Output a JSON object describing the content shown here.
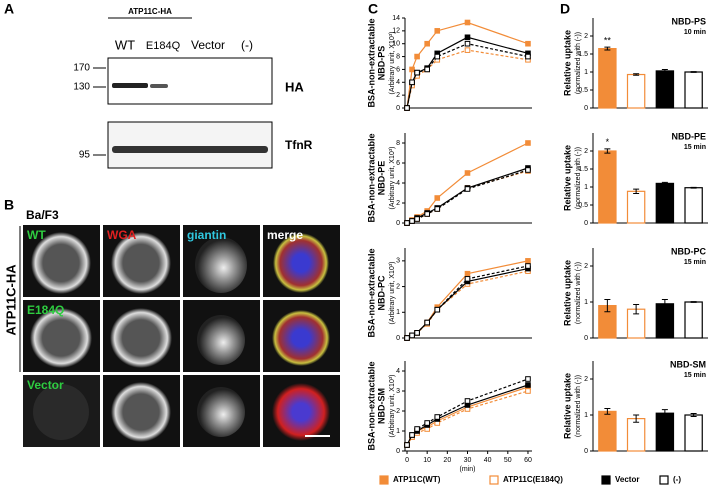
{
  "panels": {
    "letters": [
      "A",
      "B",
      "C",
      "D"
    ],
    "blot": {
      "group": "ATP11C-HA",
      "lanes": [
        "WT",
        "E184Q",
        "Vector",
        "(-)"
      ],
      "markers": [
        "170",
        "130",
        "95"
      ],
      "bands": [
        "HA",
        "TfnR"
      ]
    },
    "microscopy": {
      "cell_line": "Ba/F3",
      "side_label": "ATP11C-HA",
      "columns": [
        "WT",
        "WGA",
        "giantin",
        "merge"
      ],
      "rows": [
        "E184Q",
        "Vector"
      ]
    }
  },
  "chart_data": [
    {
      "type": "line",
      "y_label": [
        "BSA-non-extractable",
        "NBD-PS"
      ],
      "y_unit": "(Arbitrary unit, X10³)",
      "x": [
        0,
        2.5,
        5,
        10,
        15,
        30,
        60
      ],
      "xlim": [
        -1,
        62
      ],
      "ylim": [
        0,
        14
      ],
      "yticks": [
        0,
        2,
        4,
        6,
        8,
        10,
        12,
        14
      ],
      "series": [
        {
          "name": "ATP11C(WT)",
          "color": "#f28c38",
          "dashed": false,
          "filled": true,
          "values": [
            0,
            6,
            8,
            10,
            12,
            13.3,
            10
          ]
        },
        {
          "name": "ATP11C(E184Q)",
          "color": "#f28c38",
          "dashed": true,
          "filled": false,
          "values": [
            0,
            3.5,
            5,
            6,
            7.5,
            9,
            7.5
          ]
        },
        {
          "name": "Vector",
          "color": "#000000",
          "dashed": false,
          "filled": true,
          "values": [
            0,
            4,
            5.5,
            6.2,
            8.5,
            11,
            8.5
          ]
        },
        {
          "name": "(-)",
          "color": "#000000",
          "dashed": true,
          "filled": false,
          "values": [
            0,
            4,
            5.5,
            6,
            8,
            10,
            8
          ]
        }
      ]
    },
    {
      "type": "line",
      "y_label": [
        "BSA-non-extractable",
        "NBD-PE"
      ],
      "y_unit": "(Arbitrary unit, X10³)",
      "x": [
        0,
        2.5,
        5,
        10,
        15,
        30,
        60
      ],
      "xlim": [
        -1,
        62
      ],
      "ylim": [
        0,
        9
      ],
      "yticks": [
        0,
        2,
        4,
        6,
        8
      ],
      "series": [
        {
          "color": "#f28c38",
          "dashed": false,
          "filled": true,
          "values": [
            0,
            0.3,
            0.6,
            1.2,
            2.5,
            5,
            8
          ]
        },
        {
          "color": "#f28c38",
          "dashed": true,
          "filled": false,
          "values": [
            0,
            0.2,
            0.4,
            0.9,
            1.4,
            3.5,
            5.2
          ]
        },
        {
          "color": "#000000",
          "dashed": false,
          "filled": true,
          "values": [
            0,
            0.2,
            0.5,
            1,
            1.5,
            3.5,
            5.5
          ]
        },
        {
          "color": "#000000",
          "dashed": true,
          "filled": false,
          "values": [
            0,
            0.2,
            0.4,
            0.9,
            1.4,
            3.4,
            5.3
          ]
        }
      ]
    },
    {
      "type": "line",
      "y_label": [
        "BSA-non-extractable",
        "NBD-PC"
      ],
      "y_unit": "(Arbitrary unit, X10³)",
      "x": [
        0,
        2.5,
        5,
        10,
        15,
        30,
        60
      ],
      "xlim": [
        -1,
        62
      ],
      "ylim": [
        0,
        3.5
      ],
      "yticks": [
        0,
        1,
        2,
        3
      ],
      "series": [
        {
          "color": "#f28c38",
          "dashed": false,
          "filled": true,
          "values": [
            0,
            0.1,
            0.2,
            0.6,
            1.2,
            2.5,
            3
          ]
        },
        {
          "color": "#f28c38",
          "dashed": true,
          "filled": false,
          "values": [
            0,
            0.1,
            0.2,
            0.55,
            1.1,
            2.1,
            2.6
          ]
        },
        {
          "color": "#000000",
          "dashed": false,
          "filled": true,
          "values": [
            0,
            0.1,
            0.2,
            0.6,
            1.1,
            2.2,
            2.7
          ]
        },
        {
          "color": "#000000",
          "dashed": true,
          "filled": false,
          "values": [
            0,
            0.1,
            0.2,
            0.6,
            1.1,
            2.3,
            2.8
          ]
        }
      ]
    },
    {
      "type": "line",
      "y_label": [
        "BSA-non-extractable",
        "NBD-SM"
      ],
      "y_unit": "(Arbitrary unit, X10³)",
      "x_label": "(min)",
      "x": [
        0,
        2.5,
        5,
        10,
        15,
        30,
        60
      ],
      "xlim": [
        -1,
        62
      ],
      "xticks": [
        0,
        10,
        20,
        30,
        40,
        50,
        60
      ],
      "ylim": [
        0,
        4.5
      ],
      "yticks": [
        0,
        1,
        2,
        3,
        4
      ],
      "series": [
        {
          "color": "#f28c38",
          "dashed": false,
          "filled": true,
          "values": [
            0.3,
            0.7,
            1,
            1.2,
            1.5,
            2.2,
            3.2
          ]
        },
        {
          "color": "#f28c38",
          "dashed": true,
          "filled": false,
          "values": [
            0.3,
            0.7,
            0.9,
            1.1,
            1.4,
            2.1,
            3
          ]
        },
        {
          "color": "#000000",
          "dashed": false,
          "filled": true,
          "values": [
            0.3,
            0.8,
            1,
            1.3,
            1.6,
            2.3,
            3.3
          ]
        },
        {
          "color": "#000000",
          "dashed": true,
          "filled": false,
          "values": [
            0.3,
            0.8,
            1.1,
            1.4,
            1.7,
            2.5,
            3.6
          ]
        }
      ]
    },
    {
      "type": "bar",
      "title": "NBD-PS",
      "subtitle": "10 min",
      "y_label": "Relative uptake",
      "y_unit": "(normalized with (-))",
      "categories": [
        null,
        null,
        null,
        null
      ],
      "values": [
        1.65,
        0.93,
        1.03,
        1
      ],
      "errors": [
        0.04,
        0.02,
        0.04,
        0.01
      ],
      "significance": [
        "**",
        null,
        null,
        null
      ],
      "colors": [
        "#f28c38",
        "#f28c38",
        "#000000",
        "#000000"
      ],
      "filled": [
        true,
        false,
        true,
        false
      ],
      "ylim": [
        0,
        2.5
      ],
      "yticks": [
        0,
        0.5,
        1,
        1.5,
        2
      ]
    },
    {
      "type": "bar",
      "title": "NBD-PE",
      "subtitle": "15 min",
      "y_label": "Relative uptake",
      "y_unit": "(normalized with (-))",
      "categories": [
        null,
        null,
        null,
        null
      ],
      "values": [
        2,
        0.88,
        1.1,
        0.98
      ],
      "errors": [
        0.06,
        0.06,
        0.03,
        0.01
      ],
      "significance": [
        "*",
        null,
        null,
        null
      ],
      "colors": [
        "#f28c38",
        "#f28c38",
        "#000000",
        "#000000"
      ],
      "filled": [
        true,
        false,
        true,
        false
      ],
      "ylim": [
        0,
        2.5
      ],
      "yticks": [
        0,
        0.5,
        1,
        1.5,
        2
      ]
    },
    {
      "type": "bar",
      "title": "NBD-PC",
      "subtitle": "15 min",
      "y_label": "Relative uptake",
      "y_unit": "(normalized with (-))",
      "categories": [
        null,
        null,
        null,
        null
      ],
      "values": [
        0.9,
        0.8,
        0.95,
        1
      ],
      "errors": [
        0.17,
        0.13,
        0.12,
        0.01
      ],
      "significance": [
        null,
        null,
        null,
        null
      ],
      "colors": [
        "#f28c38",
        "#f28c38",
        "#000000",
        "#000000"
      ],
      "filled": [
        true,
        false,
        true,
        false
      ],
      "ylim": [
        0,
        2.5
      ],
      "yticks": [
        0,
        1,
        2
      ]
    },
    {
      "type": "bar",
      "title": "NBD-SM",
      "subtitle": "15 min",
      "y_label": "Relative uptake",
      "y_unit": "(normalized with (-))",
      "categories": [
        null,
        null,
        null,
        null
      ],
      "values": [
        1.1,
        0.9,
        1.05,
        1
      ],
      "errors": [
        0.08,
        0.1,
        0.1,
        0.04
      ],
      "significance": [
        null,
        null,
        null,
        null
      ],
      "colors": [
        "#f28c38",
        "#f28c38",
        "#000000",
        "#000000"
      ],
      "filled": [
        true,
        false,
        true,
        false
      ],
      "ylim": [
        0,
        2.5
      ],
      "yticks": [
        0,
        1,
        2
      ]
    }
  ]
}
